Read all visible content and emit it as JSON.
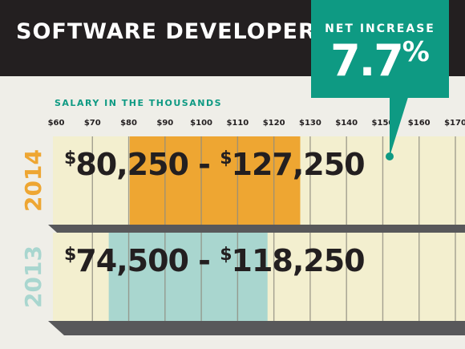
{
  "header": {
    "title": "SOFTWARE DEVELOPER"
  },
  "callout": {
    "label": "NET INCREASE",
    "value": "7.7",
    "unit": "%"
  },
  "colors": {
    "header_bg": "#231f20",
    "callout_bg": "#0e9a83",
    "row_bg": "#f3efcf",
    "bar_2014": "#eea632",
    "bar_2013": "#a9d6cf",
    "label_2014": "#eea632",
    "label_2013": "#a9d6cf",
    "grid": "#8f8c80",
    "shadow": "#58585a"
  },
  "chart_data": {
    "type": "bar",
    "orientation": "horizontal",
    "subtitle": "SALARY IN THE THOUSANDS",
    "xlim": [
      60,
      170
    ],
    "xticks": [
      60,
      70,
      80,
      90,
      100,
      110,
      120,
      130,
      140,
      150,
      160,
      170
    ],
    "xtick_labels": [
      "$60",
      "$70",
      "$80",
      "$90",
      "$100",
      "$110",
      "$120",
      "$130",
      "$140",
      "$150",
      "$160",
      "$170"
    ],
    "grid": true,
    "rows": [
      {
        "year": "2014",
        "low": 80.25,
        "high": 127.25,
        "label_low": "80,250",
        "label_high": "127,250",
        "currency": "$",
        "separator": "-"
      },
      {
        "year": "2013",
        "low": 74.5,
        "high": 118.25,
        "label_low": "74,500",
        "label_high": "118,250",
        "currency": "$",
        "separator": "-"
      }
    ]
  }
}
